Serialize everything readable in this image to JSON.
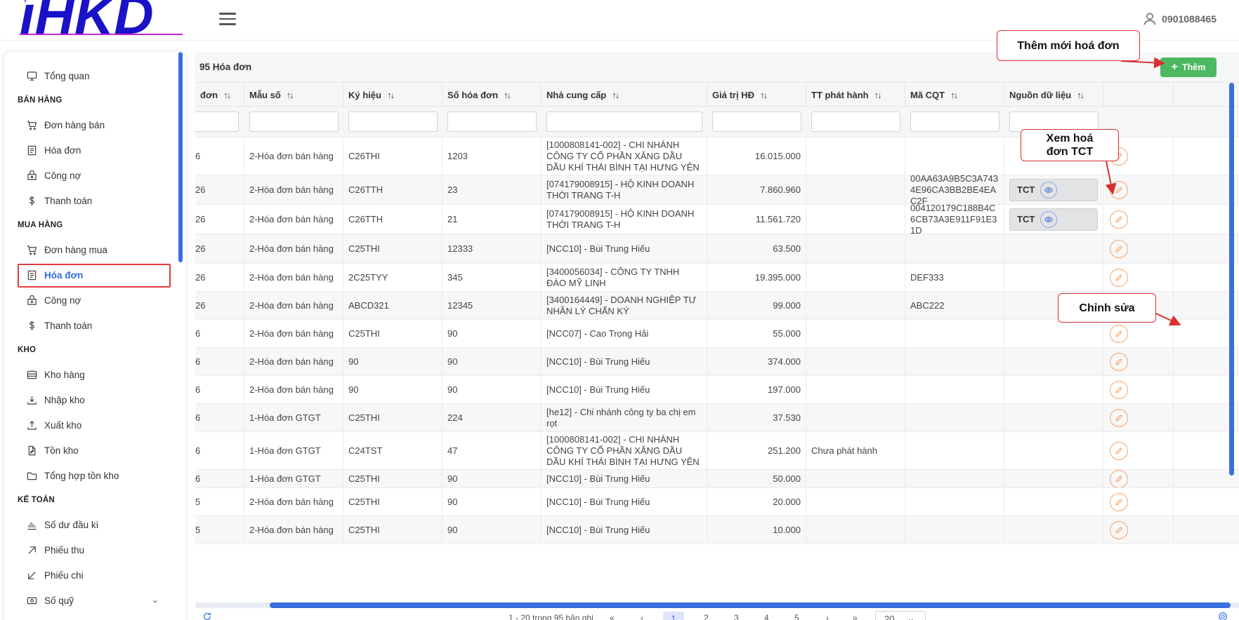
{
  "header": {
    "logo_text": "iHKD",
    "phone": "0901088465"
  },
  "sidebar": {
    "items": [
      {
        "label": "Tổng quan"
      },
      {
        "section": "BÁN HÀNG"
      },
      {
        "label": "Đơn hàng bán"
      },
      {
        "label": "Hóa đơn"
      },
      {
        "label": "Công nợ"
      },
      {
        "label": "Thanh toán"
      },
      {
        "section": "MUA HÀNG"
      },
      {
        "label": "Đơn hàng mua"
      },
      {
        "label": "Hóa đơn",
        "active": true
      },
      {
        "label": "Công nợ"
      },
      {
        "label": "Thanh toán"
      },
      {
        "section": "KHO"
      },
      {
        "label": "Kho hàng"
      },
      {
        "label": "Nhập kho"
      },
      {
        "label": "Xuất kho"
      },
      {
        "label": "Tồn kho"
      },
      {
        "label": "Tổng hợp tồn kho"
      },
      {
        "section": "KẾ TOÁN"
      },
      {
        "label": "Số dư đầu kì"
      },
      {
        "label": "Phiếu thu"
      },
      {
        "label": "Phiếu chi"
      },
      {
        "label": "Số quỹ"
      }
    ]
  },
  "main": {
    "count_label": "95 Hóa đơn",
    "add_label": "Thêm",
    "columns": [
      "đơn",
      "Mẫu số",
      "Ký hiệu",
      "Số hóa đơn",
      "Nhà cung cấp",
      "Giá trị HĐ",
      "TT phát hành",
      "Mã CQT",
      "Nguồn dữ liệu"
    ],
    "rows": [
      {
        "c0": "6",
        "mau_so": "2-Hóa đơn bán hàng",
        "ky_hieu": "C26THI",
        "so_hd": "1203",
        "ncc": "[1000808141-002] - CHI NHÁNH CÔNG TY CỔ PHẦN XĂNG DẦU DẦU KHÍ THÁI BÌNH TẠI HƯNG YÊN",
        "gia_tri": "16.015.000",
        "tt_phat_hanh": "",
        "ma_cqt": "",
        "nguon": ""
      },
      {
        "c0": "26",
        "mau_so": "2-Hóa đơn bán hàng",
        "ky_hieu": "C26TTH",
        "so_hd": "23",
        "ncc": "[074179008915] - HỘ KINH DOANH THỜI TRANG T-H",
        "gia_tri": "7.860.960",
        "tt_phat_hanh": "",
        "ma_cqt": "00AA63A9B5C3A7434E96CA3BB2BE4EAC2F",
        "nguon": "TCT"
      },
      {
        "c0": "26",
        "mau_so": "2-Hóa đơn bán hàng",
        "ky_hieu": "C26TTH",
        "so_hd": "21",
        "ncc": "[074179008915] - HỘ KINH DOANH THỜI TRANG T-H",
        "gia_tri": "11.561.720",
        "tt_phat_hanh": "",
        "ma_cqt": "004120179C188B4C6CB73A3E911F91E31D",
        "nguon": "TCT"
      },
      {
        "c0": "26",
        "mau_so": "2-Hóa đơn bán hàng",
        "ky_hieu": "C25THI",
        "so_hd": "12333",
        "ncc": "[NCC10] - Bùi Trung Hiếu",
        "gia_tri": "63.500",
        "tt_phat_hanh": "",
        "ma_cqt": "",
        "nguon": ""
      },
      {
        "c0": "26",
        "mau_so": "2-Hóa đơn bán hàng",
        "ky_hieu": "2C25TYY",
        "so_hd": "345",
        "ncc": "[3400056034] - CÔNG TY TNHH ĐÀO MỸ LINH",
        "gia_tri": "19.395.000",
        "tt_phat_hanh": "",
        "ma_cqt": "DEF333",
        "nguon": ""
      },
      {
        "c0": "26",
        "mau_so": "2-Hóa đơn bán hàng",
        "ky_hieu": "ABCD321",
        "so_hd": "12345",
        "ncc": "[3400164449] - DOANH NGHIỆP TƯ NHÂN LÝ CHẤN KÝ",
        "gia_tri": "99.000",
        "tt_phat_hanh": "",
        "ma_cqt": "ABC222",
        "nguon": ""
      },
      {
        "c0": "6",
        "mau_so": "2-Hóa đơn bán hàng",
        "ky_hieu": "C25THI",
        "so_hd": "90",
        "ncc": "[NCC07] - Cao Trọng Hải",
        "gia_tri": "55.000",
        "tt_phat_hanh": "",
        "ma_cqt": "",
        "nguon": ""
      },
      {
        "c0": "6",
        "mau_so": "2-Hóa đơn bán hàng",
        "ky_hieu": "90",
        "so_hd": "90",
        "ncc": "[NCC10] - Bùi Trung Hiếu",
        "gia_tri": "374.000",
        "tt_phat_hanh": "",
        "ma_cqt": "",
        "nguon": ""
      },
      {
        "c0": "6",
        "mau_so": "2-Hóa đơn bán hàng",
        "ky_hieu": "90",
        "so_hd": "90",
        "ncc": "[NCC10] - Bùi Trung Hiếu",
        "gia_tri": "197.000",
        "tt_phat_hanh": "",
        "ma_cqt": "",
        "nguon": ""
      },
      {
        "c0": "6",
        "mau_so": "1-Hóa đơn GTGT",
        "ky_hieu": "C25THI",
        "so_hd": "224",
        "ncc": "[he12] - Chi nhánh công ty ba chị em rọt",
        "gia_tri": "37.530",
        "tt_phat_hanh": "",
        "ma_cqt": "",
        "nguon": ""
      },
      {
        "c0": "6",
        "mau_so": "1-Hóa đơn GTGT",
        "ky_hieu": "C24TST",
        "so_hd": "47",
        "ncc": "[1000808141-002] - CHI NHÁNH CÔNG TY CỔ PHẦN XĂNG DẦU DẦU KHÍ THÁI BÌNH TẠI HƯNG YÊN",
        "gia_tri": "251.200",
        "tt_phat_hanh": "Chưa phát hành",
        "ma_cqt": "",
        "nguon": ""
      },
      {
        "c0": "6",
        "mau_so": "1-Hóa đơn GTGT",
        "ky_hieu": "C25THI",
        "so_hd": "90",
        "ncc": "[NCC10] - Bùi Trung Hiếu",
        "gia_tri": "50.000",
        "tt_phat_hanh": "",
        "ma_cqt": "",
        "nguon": ""
      },
      {
        "c0": "5",
        "mau_so": "2-Hóa đơn bán hàng",
        "ky_hieu": "C25THI",
        "so_hd": "90",
        "ncc": "[NCC10] - Bùi Trung Hiếu",
        "gia_tri": "20.000",
        "tt_phat_hanh": "",
        "ma_cqt": "",
        "nguon": ""
      },
      {
        "c0": "5",
        "mau_so": "2-Hóa đơn bán hàng",
        "ky_hieu": "C25THI",
        "so_hd": "90",
        "ncc": "[NCC10] - Bùi Trung Hiếu",
        "gia_tri": "10.000",
        "tt_phat_hanh": "",
        "ma_cqt": "",
        "nguon": ""
      }
    ]
  },
  "pagination": {
    "summary": "1 - 20 trong 95 bản ghi",
    "first": "«",
    "prev": "‹",
    "pages": [
      "1",
      "2",
      "3",
      "4",
      "5"
    ],
    "active_page": "1",
    "next": "›",
    "last": "»",
    "page_size": "20"
  },
  "callouts": {
    "add_new": "Thêm mới hoá đơn",
    "view_tct": "Xem hoá đơn TCT",
    "edit": "Chỉnh sửa"
  },
  "colors": {
    "primary": "#3b6fe0",
    "add_button": "#4cb860",
    "callout_border": "#d93030",
    "edit_icon": "#f2a36b",
    "logo": "#1a12c8"
  }
}
